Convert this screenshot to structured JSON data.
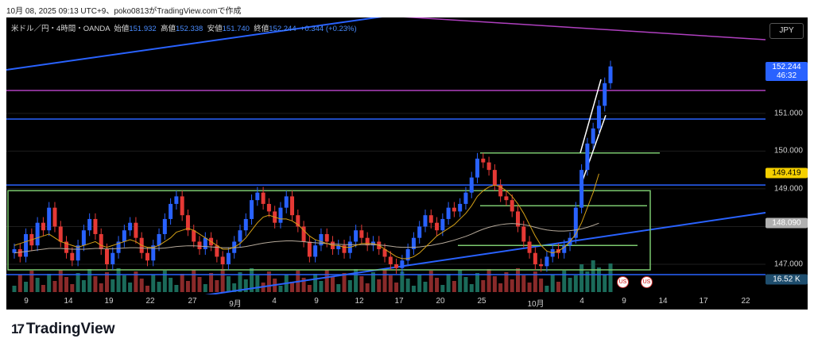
{
  "header": {
    "caption": "10月 08, 2025 09:13 UTC+9、poko0813がTradingView.comで作成"
  },
  "legend": {
    "symbol": "米ドル／円・4時間・OANDA",
    "open_label": "始値",
    "open": "151.932",
    "high_label": "高値",
    "high": "152.338",
    "low_label": "安値",
    "low": "151.740",
    "close_label": "終値",
    "close": "152.244",
    "change": "+0.344 (+0.23%)"
  },
  "currency_button": "JPY",
  "brand": {
    "name": "TradingView"
  },
  "colors": {
    "up": "#2962ff",
    "down": "#e53935",
    "vol_up": "#1b6b5a",
    "vol_down": "#8a2a2a",
    "ma_short": "#d4a017",
    "ma_long": "#b5a99a",
    "blue_line": "#2962ff",
    "purple_line": "#b040c0",
    "green_box": "#7bc96f",
    "white_channel": "#ffffff"
  },
  "chart_data": {
    "type": "line",
    "title": "",
    "ylim": [
      146.6,
      152.7
    ],
    "y_ticks": [
      147.0,
      148.0,
      149.0,
      150.0,
      151.0
    ],
    "x_ticks": [
      "9",
      "14",
      "19",
      "22",
      "27",
      "9月",
      "4",
      "9",
      "12",
      "17",
      "20",
      "25",
      "10月",
      "4",
      "9",
      "14",
      "17",
      "22"
    ],
    "price_tags": [
      {
        "value": 152.244,
        "label": "152.244",
        "sub": "46:32",
        "color": "#2962ff"
      },
      {
        "value": 149.419,
        "label": "149.419",
        "color": "#f5d000"
      },
      {
        "value": 148.09,
        "label": "148.090",
        "color": "#b0b0b0"
      }
    ],
    "volume_tag": {
      "label": "16.52 K",
      "color": "#1f4e6e"
    },
    "series": [
      {
        "name": "",
        "values": [
          147.4,
          147.2,
          147.8,
          147.5,
          148.1,
          147.9,
          148.5,
          148.0,
          147.6,
          147.3,
          147.1,
          147.5,
          147.9,
          148.2,
          147.8,
          147.4,
          147.0,
          147.3,
          147.6,
          147.9,
          148.1,
          147.7,
          147.3,
          147.1,
          147.5,
          147.8,
          148.2,
          148.6,
          148.8,
          148.3,
          147.9,
          147.6,
          147.4,
          147.7,
          147.5,
          147.2,
          147.0,
          147.3,
          147.6,
          147.9,
          148.2,
          148.7,
          148.9,
          148.6,
          148.4,
          148.1,
          148.5,
          148.8,
          148.3,
          148.0,
          147.6,
          147.2,
          147.5,
          147.8,
          147.6,
          147.4,
          147.5,
          147.3,
          147.6,
          147.9,
          147.7,
          147.5,
          147.6,
          147.4,
          147.2,
          147.0,
          146.9,
          147.1,
          147.4,
          147.7,
          148.0,
          148.3,
          148.1,
          147.9,
          148.2,
          148.5,
          148.4,
          148.6,
          148.9,
          149.3,
          149.8,
          149.7,
          149.5,
          149.1,
          148.8,
          148.7,
          148.4,
          148.0,
          147.6,
          147.3,
          147.0,
          146.95,
          147.2,
          147.4,
          147.3,
          147.5,
          147.7,
          148.5,
          149.5,
          150.2,
          150.6,
          151.2,
          151.8,
          152.244
        ]
      }
    ],
    "ma_short": [
      147.5,
      147.55,
      147.6,
      147.65,
      147.7,
      147.75,
      147.8,
      147.7,
      147.6,
      147.55,
      147.5,
      147.45,
      147.5,
      147.55,
      147.6,
      147.5,
      147.45,
      147.5,
      147.55,
      147.6,
      147.65,
      147.6,
      147.5,
      147.45,
      147.45,
      147.5,
      147.6,
      147.7,
      147.85,
      147.9,
      147.95,
      147.9,
      147.8,
      147.7,
      147.6,
      147.5,
      147.4,
      147.4,
      147.45,
      147.55,
      147.7,
      147.9,
      148.1,
      148.25,
      148.3,
      148.25,
      148.2,
      148.2,
      148.15,
      148.05,
      147.9,
      147.75,
      147.65,
      147.6,
      147.55,
      147.5,
      147.5,
      147.45,
      147.45,
      147.5,
      147.55,
      147.55,
      147.55,
      147.5,
      147.4,
      147.3,
      147.2,
      147.15,
      147.15,
      147.2,
      147.3,
      147.45,
      147.6,
      147.75,
      147.85,
      147.95,
      148.05,
      148.2,
      148.35,
      148.55,
      148.8,
      148.95,
      149.05,
      149.1,
      149.05,
      148.95,
      148.8,
      148.6,
      148.35,
      148.05,
      147.75,
      147.5,
      147.35,
      147.3,
      147.35,
      147.45,
      147.6,
      147.8,
      148.1,
      148.5,
      148.9,
      149.4
    ],
    "ma_long": [
      147.3,
      147.32,
      147.34,
      147.36,
      147.38,
      147.4,
      147.42,
      147.42,
      147.42,
      147.41,
      147.4,
      147.4,
      147.4,
      147.41,
      147.42,
      147.42,
      147.41,
      147.41,
      147.42,
      147.43,
      147.44,
      147.44,
      147.43,
      147.42,
      147.42,
      147.42,
      147.43,
      147.45,
      147.47,
      147.48,
      147.49,
      147.49,
      147.48,
      147.47,
      147.46,
      147.45,
      147.44,
      147.44,
      147.44,
      147.45,
      147.47,
      147.5,
      147.53,
      147.56,
      147.58,
      147.6,
      147.61,
      147.62,
      147.62,
      147.61,
      147.6,
      147.58,
      147.57,
      147.56,
      147.55,
      147.54,
      147.53,
      147.52,
      147.52,
      147.52,
      147.52,
      147.52,
      147.52,
      147.51,
      147.5,
      147.48,
      147.46,
      147.45,
      147.45,
      147.45,
      147.46,
      147.48,
      147.5,
      147.53,
      147.56,
      147.6,
      147.64,
      147.69,
      147.74,
      147.8,
      147.87,
      147.93,
      147.98,
      148.02,
      148.05,
      148.07,
      148.08,
      148.07,
      148.05,
      148.02,
      147.98,
      147.94,
      147.91,
      147.89,
      147.88,
      147.88,
      147.89,
      147.91,
      147.94,
      147.98,
      148.03,
      148.09
    ]
  }
}
